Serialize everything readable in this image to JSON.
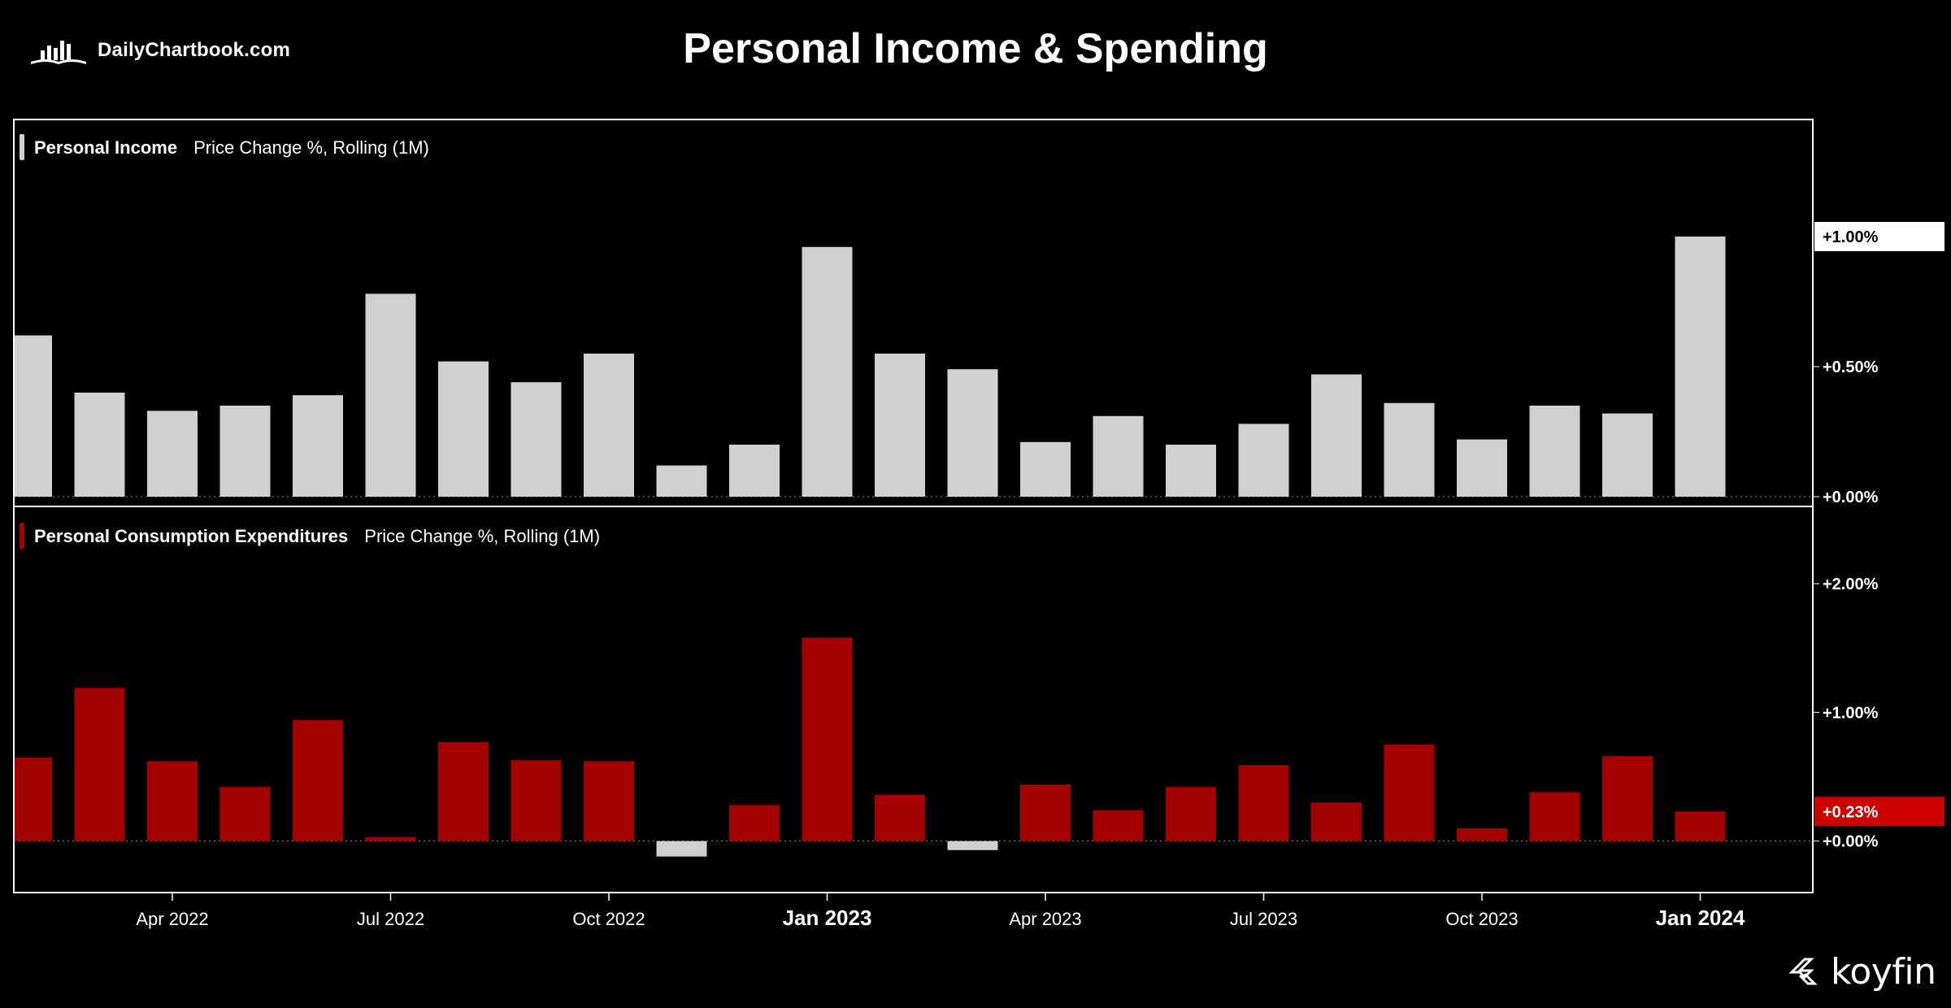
{
  "header": {
    "brand": "DailyChartbook.com",
    "title": "Personal Income & Spending"
  },
  "footer": {
    "brand": "koyfin"
  },
  "colors": {
    "income": "#d0d0d0",
    "spending": "#a30000",
    "negative": "#d0d0d0",
    "frame": "#ffffff"
  },
  "chart_data": [
    {
      "type": "bar",
      "title": "Personal Income",
      "subtitle": "Price Change %, Rolling (1M)",
      "categories": [
        "Feb 2022",
        "Mar 2022",
        "Apr 2022",
        "May 2022",
        "Jun 2022",
        "Jul 2022",
        "Aug 2022",
        "Sep 2022",
        "Oct 2022",
        "Nov 2022",
        "Dec 2022",
        "Jan 2023",
        "Feb 2023",
        "Mar 2023",
        "Apr 2023",
        "May 2023",
        "Jun 2023",
        "Jul 2023",
        "Aug 2023",
        "Sep 2023",
        "Oct 2023",
        "Nov 2023",
        "Dec 2023",
        "Jan 2024"
      ],
      "values": [
        0.62,
        0.4,
        0.33,
        0.35,
        0.39,
        0.78,
        0.52,
        0.44,
        0.55,
        0.12,
        0.2,
        0.96,
        0.55,
        0.49,
        0.21,
        0.31,
        0.2,
        0.28,
        0.47,
        0.36,
        0.22,
        0.35,
        0.32,
        1.0
      ],
      "ylim": [
        0,
        1.45
      ],
      "yticks": [
        0,
        0.5
      ],
      "ytick_labels": [
        "+0.00%",
        "+0.50%"
      ],
      "last_value_label": "+1.00%",
      "color": "#d0d0d0"
    },
    {
      "type": "bar",
      "title": "Personal Consumption Expenditures",
      "subtitle": "Price Change %, Rolling (1M)",
      "categories": [
        "Feb 2022",
        "Mar 2022",
        "Apr 2022",
        "May 2022",
        "Jun 2022",
        "Jul 2022",
        "Aug 2022",
        "Sep 2022",
        "Oct 2022",
        "Nov 2022",
        "Dec 2022",
        "Jan 2023",
        "Feb 2023",
        "Mar 2023",
        "Apr 2023",
        "May 2023",
        "Jun 2023",
        "Jul 2023",
        "Aug 2023",
        "Sep 2023",
        "Oct 2023",
        "Nov 2023",
        "Dec 2023",
        "Jan 2024"
      ],
      "values": [
        0.65,
        1.19,
        0.62,
        0.42,
        0.94,
        0.03,
        0.77,
        0.63,
        0.62,
        -0.12,
        0.28,
        1.58,
        0.36,
        -0.07,
        0.44,
        0.24,
        0.42,
        0.59,
        0.3,
        0.75,
        0.1,
        0.38,
        0.66,
        0.23
      ],
      "ylim": [
        -0.4,
        2.6
      ],
      "yticks": [
        0,
        1,
        2
      ],
      "ytick_labels": [
        "+0.00%",
        "+1.00%",
        "+2.00%"
      ],
      "last_value_label": "+0.23%",
      "color": "#a30000"
    }
  ],
  "x_axis": {
    "ticks": [
      {
        "label": "Apr 2022",
        "index": 2,
        "bold": false
      },
      {
        "label": "Jul 2022",
        "index": 5,
        "bold": false
      },
      {
        "label": "Oct 2022",
        "index": 8,
        "bold": false
      },
      {
        "label": "Jan 2023",
        "index": 11,
        "bold": true
      },
      {
        "label": "Apr 2023",
        "index": 14,
        "bold": false
      },
      {
        "label": "Jul 2023",
        "index": 17,
        "bold": false
      },
      {
        "label": "Oct 2023",
        "index": 20,
        "bold": false
      },
      {
        "label": "Jan 2024",
        "index": 23,
        "bold": true
      }
    ]
  }
}
